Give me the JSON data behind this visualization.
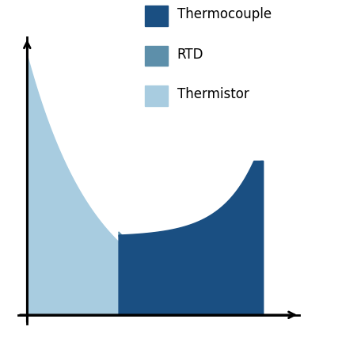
{
  "color_thermistor": "#a8cce0",
  "color_rtd": "#5d8faa",
  "color_thermocouple": "#1a4f82",
  "legend_labels": [
    "Thermocouple",
    "RTD",
    "Thermistor"
  ],
  "legend_colors": [
    "#1a4f82",
    "#5d8faa",
    "#a8cce0"
  ],
  "background_color": "#ffffff",
  "figsize": [
    4.32,
    4.32
  ],
  "dpi": 100
}
